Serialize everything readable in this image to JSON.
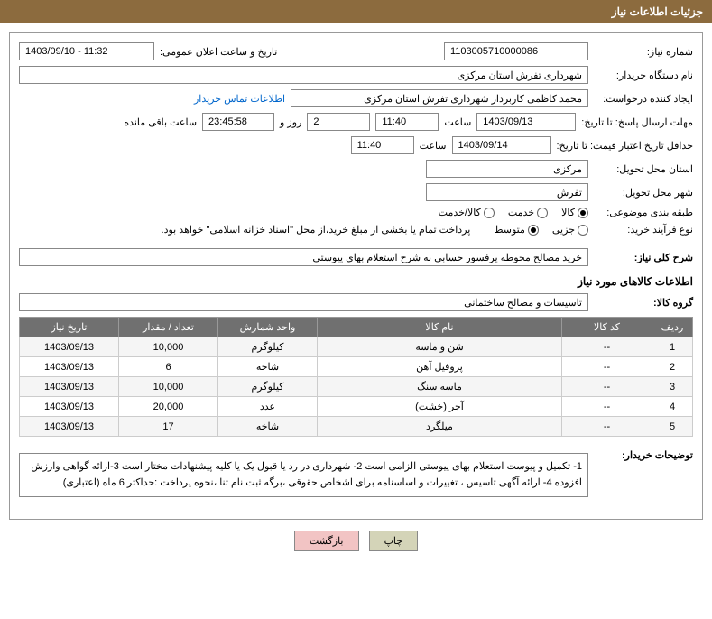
{
  "header": {
    "title": "جزئیات اطلاعات نیاز"
  },
  "form": {
    "need_no_label": "شماره نیاز:",
    "need_no": "1103005710000086",
    "announce_label": "تاریخ و ساعت اعلان عمومی:",
    "announce_value": "1403/09/10 - 11:32",
    "buyer_org_label": "نام دستگاه خریدار:",
    "buyer_org": "شهرداری تفرش استان مرکزی",
    "requester_label": "ایجاد کننده درخواست:",
    "requester": "محمد کاظمی کاربرداز شهرداری تفرش استان مرکزی",
    "contact_link": "اطلاعات تماس خریدار",
    "deadline_label": "مهلت ارسال پاسخ: تا تاریخ:",
    "deadline_date": "1403/09/13",
    "time_label": "ساعت",
    "deadline_time": "11:40",
    "days": "2",
    "days_label": "روز و",
    "countdown": "23:45:58",
    "remain_label": "ساعت باقی مانده",
    "validity_label": "حداقل تاریخ اعتبار قیمت: تا تاریخ:",
    "validity_date": "1403/09/14",
    "validity_time": "11:40",
    "province_label": "استان محل تحویل:",
    "province": "مرکزی",
    "city_label": "شهر محل تحویل:",
    "city": "تفرش",
    "category_label": "طبقه بندی موضوعی:",
    "cat_goods": "کالا",
    "cat_service": "خدمت",
    "cat_both": "کالا/خدمت",
    "process_label": "نوع فرآیند خرید:",
    "proc_small": "جزیی",
    "proc_medium": "متوسط",
    "payment_note": "پرداخت تمام یا بخشی از مبلغ خرید،از محل \"اسناد خزانه اسلامی\" خواهد بود.",
    "desc_label": "شرح کلی نیاز:",
    "desc": "خرید مصالح محوطه پرفسور حسابی به شرح استعلام بهای پیوستی",
    "goods_section": "اطلاعات کالاهای مورد نیاز",
    "group_label": "گروه کالا:",
    "group": "تاسیسات و مصالح ساختمانی",
    "buyer_notes_label": "توضیحات خریدار:",
    "buyer_notes": "1-     تکمیل و پیوست استعلام بهای پیوستی الزامی است 2- شهرداری در رد یا قبول یک یا کلیه پیشنهادات مختار است 3-ارائه گواهی وارزش افزوده 4- ارائه آگهی تاسیس ، تغییرات و اساسنامه برای اشخاص حقوقی ،برگه ثبت نام ثنا ،نحوه پرداخت :حداکثر 6 ماه (اعتباری)"
  },
  "table": {
    "headers": {
      "row": "ردیف",
      "code": "کد کالا",
      "name": "نام کالا",
      "unit": "واحد شمارش",
      "qty": "تعداد / مقدار",
      "date": "تاریخ نیاز"
    },
    "rows": [
      {
        "row": "1",
        "code": "--",
        "name": "شن و ماسه",
        "unit": "کیلوگرم",
        "qty": "10,000",
        "date": "1403/09/13"
      },
      {
        "row": "2",
        "code": "--",
        "name": "پروفیل آهن",
        "unit": "شاخه",
        "qty": "6",
        "date": "1403/09/13"
      },
      {
        "row": "3",
        "code": "--",
        "name": "ماسه سنگ",
        "unit": "کیلوگرم",
        "qty": "10,000",
        "date": "1403/09/13"
      },
      {
        "row": "4",
        "code": "--",
        "name": "آجر (خشت)",
        "unit": "عدد",
        "qty": "20,000",
        "date": "1403/09/13"
      },
      {
        "row": "5",
        "code": "--",
        "name": "میلگرد",
        "unit": "شاخه",
        "qty": "17",
        "date": "1403/09/13"
      }
    ]
  },
  "buttons": {
    "print": "چاپ",
    "back": "بازگشت"
  }
}
